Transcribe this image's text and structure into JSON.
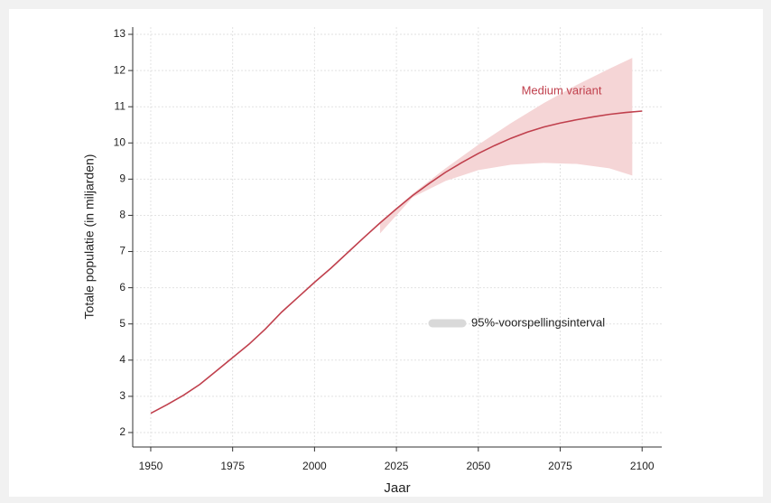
{
  "chart_data": {
    "type": "line",
    "xlabel": "Jaar",
    "ylabel": "Totale populatie (in miljarden)",
    "x": [
      1950,
      1955,
      1960,
      1965,
      1970,
      1975,
      1980,
      1985,
      1990,
      1995,
      2000,
      2005,
      2010,
      2015,
      2020,
      2025,
      2030,
      2035,
      2040,
      2045,
      2050,
      2055,
      2060,
      2065,
      2070,
      2075,
      2080,
      2085,
      2090,
      2095,
      2100
    ],
    "series": [
      {
        "name": "Medium variant",
        "color": "#c0404d",
        "values": [
          2.53,
          2.77,
          3.03,
          3.33,
          3.7,
          4.07,
          4.44,
          4.86,
          5.33,
          5.74,
          6.15,
          6.54,
          6.96,
          7.38,
          7.79,
          8.18,
          8.55,
          8.88,
          9.19,
          9.46,
          9.71,
          9.93,
          10.13,
          10.3,
          10.44,
          10.55,
          10.64,
          10.72,
          10.79,
          10.84,
          10.88
        ]
      }
    ],
    "band": {
      "name": "95%-voorspellingsinterval",
      "color": "#f5d5d6",
      "legend_color": "#d9d9d9",
      "x": [
        2020,
        2030,
        2040,
        2050,
        2060,
        2070,
        2080,
        2090,
        2097
      ],
      "lower": [
        7.5,
        8.5,
        8.95,
        9.25,
        9.4,
        9.45,
        9.42,
        9.3,
        9.1
      ],
      "upper": [
        7.8,
        8.6,
        9.3,
        9.95,
        10.55,
        11.1,
        11.6,
        12.05,
        12.35
      ]
    },
    "xlim": [
      1944.5,
      2106
    ],
    "ylim": [
      1.6,
      13.2
    ],
    "xticks": [
      1950,
      1975,
      2000,
      2025,
      2050,
      2075,
      2100
    ],
    "yticks": [
      2,
      3,
      4,
      5,
      6,
      7,
      8,
      9,
      10,
      11,
      12,
      13
    ],
    "grid": true
  }
}
